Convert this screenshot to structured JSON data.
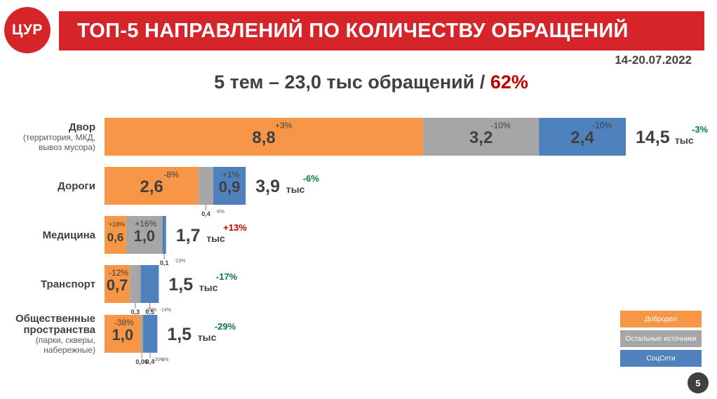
{
  "logo": "ЦУР",
  "title": "ТОП-5 НАПРАВЛЕНИЙ ПО КОЛИЧЕСТВУ ОБРАЩЕНИЙ",
  "date": "14-20.07.2022",
  "summary": {
    "text": "5 тем – 23,0 тыс обращений / ",
    "percent": "62%"
  },
  "page_number": "5",
  "colors": {
    "accent": "#d5252b",
    "orange": "#f79646",
    "gray": "#a6a6a6",
    "blue": "#4f81bd",
    "pct_up": "#c00000",
    "pct_down": "#0b7a3e"
  },
  "legend": [
    {
      "label": "Добродел",
      "color": "#f79646"
    },
    {
      "label": "Остальные источники",
      "color": "#a6a6a6"
    },
    {
      "label": "СоцСети",
      "color": "#4f81bd"
    }
  ],
  "chart_data": {
    "type": "bar",
    "orientation": "horizontal",
    "stacked": true,
    "unit": "тыс",
    "categories": [
      {
        "name": "Двор",
        "sub": [
          "(территория, МКД,",
          "вывоз мусора)"
        ],
        "total": "14,5",
        "total_change": "-3%",
        "total_change_dir": "down"
      },
      {
        "name": "Дороги",
        "sub": [],
        "total": "3,9",
        "total_change": "-6%",
        "total_change_dir": "down"
      },
      {
        "name": "Медицина",
        "sub": [],
        "total": "1,7",
        "total_change": "+13%",
        "total_change_dir": "up"
      },
      {
        "name": "Транспорт",
        "sub": [],
        "total": "1,5",
        "total_change": "-17%",
        "total_change_dir": "down"
      },
      {
        "name": "Общественные",
        "name2": "пространства",
        "sub": [
          "(парки, скверы,",
          "набережные)"
        ],
        "total": "1,5",
        "total_change": "-29%",
        "total_change_dir": "down"
      }
    ],
    "series": [
      {
        "name": "Добродел",
        "color": "#f79646",
        "values": [
          8.8,
          2.6,
          0.6,
          0.7,
          1.0
        ],
        "labels": [
          "8,8",
          "2,6",
          "0,6",
          "0,7",
          "1,0"
        ],
        "changes": [
          "+3%",
          "-8%",
          "+18%",
          "-12%",
          "-38%"
        ]
      },
      {
        "name": "Остальные источники",
        "color": "#a6a6a6",
        "values": [
          3.2,
          0.4,
          1.0,
          0.3,
          0.06
        ],
        "labels": [
          "3,2",
          "0,4",
          "1,0",
          "0,3",
          "0,06"
        ],
        "changes": [
          "-10%",
          "-6%",
          "+16%",
          "-28%",
          "+20%"
        ]
      },
      {
        "name": "СоцСети",
        "color": "#4f81bd",
        "values": [
          2.4,
          0.9,
          0.1,
          0.5,
          0.4
        ],
        "labels": [
          "2,4",
          "0,9",
          "0,1",
          "0,5",
          "0,4"
        ],
        "changes": [
          "-10%",
          "+1%",
          "-23%",
          "-14%",
          "-1%"
        ]
      }
    ]
  }
}
